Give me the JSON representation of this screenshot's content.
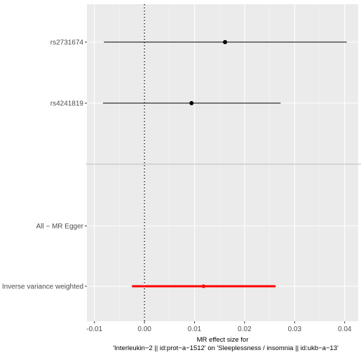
{
  "chart_data": {
    "type": "forest",
    "xlabel_lines": [
      "MR effect size for",
      "'Interleukin−2 || id:prot−a−1512' on 'Sleeplessness / insomnia || id:ukb−a−13'"
    ],
    "xlim": [
      -0.0115,
      0.0427
    ],
    "x_ticks": [
      -0.01,
      0.0,
      0.01,
      0.02,
      0.03,
      0.04
    ],
    "x_tick_labels": [
      "-0.01",
      "0.00",
      "0.01",
      "0.02",
      "0.03",
      "0.04"
    ],
    "reference_line_x": 0.0,
    "grid": true,
    "rows": [
      {
        "label": "rs2731674",
        "estimate": 0.0161,
        "ci_low": -0.0081,
        "ci_high": 0.0404,
        "color": "#000000",
        "group": "snp"
      },
      {
        "label": "rs4241819",
        "estimate": 0.0094,
        "ci_low": -0.0083,
        "ci_high": 0.0272,
        "color": "#000000",
        "group": "snp"
      },
      {
        "label": "All − MR Egger",
        "estimate": null,
        "ci_low": null,
        "ci_high": null,
        "color": "#000000",
        "group": "summary"
      },
      {
        "label": "All − Inverse variance weighted",
        "estimate": 0.0118,
        "ci_low": -0.0025,
        "ci_high": 0.0262,
        "color": "#ff0000",
        "group": "summary"
      }
    ]
  },
  "colors": {
    "panel_bg": "#ebebeb",
    "grid_major": "#ffffff",
    "separator": "#bebebe",
    "summary_line": "#ff0000"
  }
}
